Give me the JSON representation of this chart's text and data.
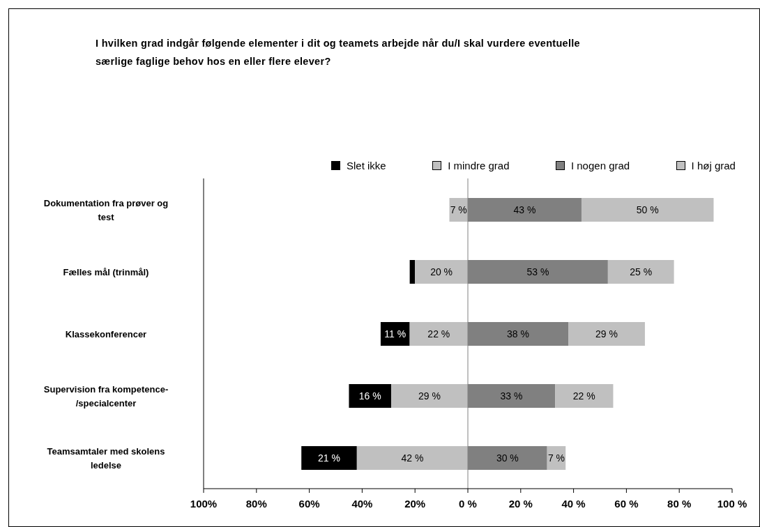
{
  "chart_data": {
    "type": "bar",
    "orientation": "horizontal",
    "title": "I hvilken grad indgår følgende elementer i dit og teamets arbejde når du/I skal vurdere eventuelle særlige faglige behov hos en eller flere elever?",
    "categories": [
      "Dokumentation fra prøver og test",
      "Fælles mål (trinmål)",
      "Klassekonferencer",
      "Supervision fra kompetence-/specialcenter",
      "Teamsamtaler med skolens ledelse"
    ],
    "series": [
      {
        "name": "Slet ikke",
        "color": "#000000",
        "values": [
          null,
          2,
          11,
          16,
          21
        ],
        "base": [
          null,
          -22,
          -33,
          -45,
          -63
        ],
        "value_labels": [
          null,
          null,
          "11 %",
          "16 %",
          "21 %"
        ]
      },
      {
        "name": "I mindre grad",
        "color": "#c0c0c0",
        "values": [
          7,
          20,
          22,
          29,
          42
        ],
        "base": [
          -7,
          -20,
          -22,
          -29,
          -42
        ],
        "value_labels": [
          "7 %",
          "20 %",
          "22 %",
          "29 %",
          "42 %"
        ]
      },
      {
        "name": "I nogen grad",
        "color": "#808080",
        "values": [
          43,
          53,
          38,
          33,
          30
        ],
        "base": [
          0,
          0,
          0,
          0,
          0
        ],
        "value_labels": [
          "43 %",
          "53 %",
          "38 %",
          "33 %",
          "30 %"
        ]
      },
      {
        "name": "I høj grad",
        "color": "#c0c0c0",
        "values": [
          50,
          25,
          29,
          22,
          7
        ],
        "base": [
          43,
          53,
          38,
          33,
          30
        ],
        "value_labels": [
          "50 %",
          "25 %",
          "29 %",
          "22 %",
          "7 %"
        ]
      }
    ],
    "xlim": [
      -100,
      100
    ],
    "xticks": [
      {
        "value": -100,
        "label": "100%"
      },
      {
        "value": -80,
        "label": "80%"
      },
      {
        "value": -60,
        "label": "60%"
      },
      {
        "value": -40,
        "label": "40%"
      },
      {
        "value": -20,
        "label": "20%"
      },
      {
        "value": 0,
        "label": "0 %"
      },
      {
        "value": 20,
        "label": "20 %"
      },
      {
        "value": 40,
        "label": "40 %"
      },
      {
        "value": 60,
        "label": "60 %"
      },
      {
        "value": 80,
        "label": "80 %"
      },
      {
        "value": 100,
        "label": "100 %"
      }
    ],
    "ref_lines": [
      {
        "axis": "x",
        "value": 0,
        "color": "#808080"
      }
    ],
    "legend": "top",
    "grid": false
  }
}
